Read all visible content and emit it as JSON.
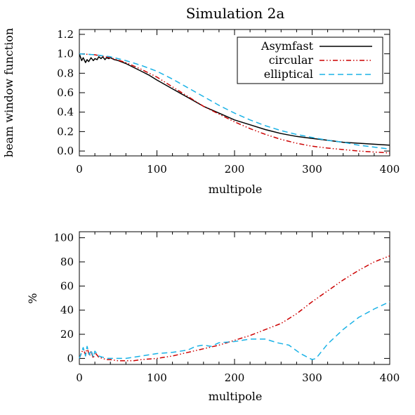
{
  "chart_data": [
    {
      "type": "line",
      "title": "Simulation 2a",
      "xlabel": "multipole",
      "ylabel": "beam window function",
      "xlim": [
        0,
        400
      ],
      "ylim": [
        -0.05,
        1.25
      ],
      "xticks": [
        0,
        100,
        200,
        300,
        400
      ],
      "xtick_labels": [
        "0",
        "100",
        "200",
        "300",
        "400"
      ],
      "yticks": [
        0.0,
        0.2,
        0.4,
        0.6,
        0.8,
        1.0,
        1.2
      ],
      "ytick_labels": [
        "0.0",
        "0.2",
        "0.4",
        "0.6",
        "0.8",
        "1.0",
        "1.2"
      ],
      "grid": false,
      "legend_position": "top-right",
      "series": [
        {
          "name": "Asymfast",
          "color": "#000000",
          "dash": "solid",
          "x": [
            0,
            3,
            5,
            8,
            10,
            12,
            15,
            18,
            20,
            23,
            25,
            28,
            30,
            33,
            35,
            38,
            40,
            45,
            50,
            60,
            70,
            80,
            90,
            100,
            120,
            140,
            160,
            180,
            200,
            220,
            240,
            260,
            280,
            300,
            320,
            340,
            360,
            380,
            400
          ],
          "y": [
            1.0,
            0.93,
            0.96,
            0.91,
            0.94,
            0.92,
            0.96,
            0.93,
            0.95,
            0.94,
            0.97,
            0.95,
            0.97,
            0.94,
            0.96,
            0.95,
            0.96,
            0.94,
            0.93,
            0.9,
            0.86,
            0.82,
            0.78,
            0.73,
            0.64,
            0.55,
            0.46,
            0.39,
            0.32,
            0.27,
            0.22,
            0.18,
            0.15,
            0.13,
            0.11,
            0.09,
            0.08,
            0.07,
            0.06
          ]
        },
        {
          "name": "circular",
          "color": "#cc0000",
          "dash": "dash-dot-dot",
          "x": [
            0,
            20,
            40,
            60,
            80,
            100,
            120,
            140,
            160,
            180,
            200,
            220,
            240,
            260,
            280,
            300,
            320,
            340,
            360,
            380,
            400
          ],
          "y": [
            1.0,
            0.99,
            0.96,
            0.91,
            0.84,
            0.76,
            0.66,
            0.56,
            0.46,
            0.38,
            0.3,
            0.23,
            0.17,
            0.12,
            0.08,
            0.05,
            0.03,
            0.015,
            0.0,
            -0.01,
            -0.02
          ]
        },
        {
          "name": "elliptical",
          "color": "#1ab2e6",
          "dash": "dashed",
          "x": [
            0,
            20,
            40,
            60,
            80,
            100,
            120,
            140,
            160,
            180,
            200,
            220,
            240,
            260,
            280,
            300,
            320,
            340,
            360,
            380,
            400
          ],
          "y": [
            1.0,
            0.99,
            0.97,
            0.93,
            0.88,
            0.82,
            0.74,
            0.65,
            0.56,
            0.47,
            0.39,
            0.32,
            0.26,
            0.21,
            0.17,
            0.14,
            0.11,
            0.09,
            0.06,
            0.04,
            0.02
          ]
        }
      ]
    },
    {
      "type": "line",
      "title": "",
      "xlabel": "multipole",
      "ylabel": "%",
      "xlim": [
        0,
        400
      ],
      "ylim": [
        -5,
        105
      ],
      "xticks": [
        0,
        100,
        200,
        300,
        400
      ],
      "xtick_labels": [
        "0",
        "100",
        "200",
        "300",
        "400"
      ],
      "yticks": [
        0,
        20,
        40,
        60,
        80,
        100
      ],
      "ytick_labels": [
        "0",
        "20",
        "40",
        "60",
        "80",
        "100"
      ],
      "grid": false,
      "series": [
        {
          "color": "#cc0000",
          "dash": "dash-dot-dot",
          "x": [
            0,
            5,
            8,
            10,
            13,
            15,
            18,
            20,
            25,
            30,
            35,
            40,
            50,
            60,
            70,
            80,
            100,
            120,
            140,
            160,
            180,
            200,
            220,
            240,
            260,
            280,
            300,
            320,
            340,
            360,
            380,
            400
          ],
          "y": [
            0,
            8,
            3,
            9,
            2,
            6,
            0,
            5,
            1,
            0,
            -1,
            -1,
            -2,
            -2,
            -2,
            -1,
            0,
            2,
            5,
            8,
            11,
            15,
            19,
            24,
            29,
            37,
            47,
            56,
            65,
            73,
            80,
            85
          ]
        },
        {
          "color": "#1ab2e6",
          "dash": "dashed",
          "x": [
            0,
            5,
            8,
            10,
            13,
            15,
            18,
            20,
            25,
            30,
            35,
            40,
            50,
            60,
            70,
            80,
            100,
            120,
            140,
            150,
            160,
            170,
            180,
            200,
            220,
            240,
            255,
            270,
            285,
            300,
            305,
            320,
            340,
            360,
            380,
            400
          ],
          "y": [
            0,
            9,
            2,
            10,
            3,
            7,
            1,
            6,
            2,
            1,
            0,
            0,
            0,
            0,
            1,
            2,
            4,
            5,
            7,
            10,
            11,
            10,
            13,
            14,
            16,
            16,
            13,
            11,
            4,
            -1,
            0,
            12,
            24,
            34,
            41,
            47
          ]
        }
      ]
    }
  ]
}
